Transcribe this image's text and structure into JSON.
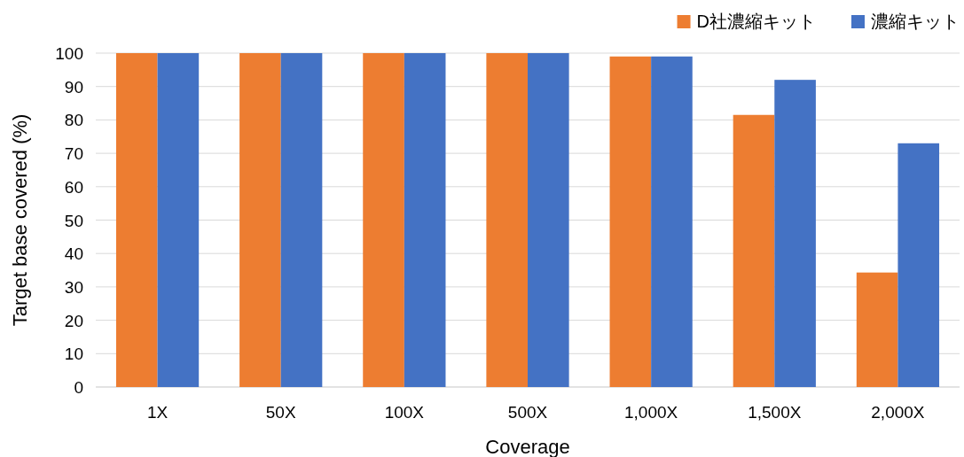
{
  "chart_data": {
    "type": "bar",
    "xlabel": "Coverage",
    "ylabel": "Target base covered (%)",
    "categories": [
      "1X",
      "50X",
      "100X",
      "500X",
      "1,000X",
      "1,500X",
      "2,000X"
    ],
    "series": [
      {
        "name": "D社濃縮キット",
        "color": "#ed7d31",
        "values": [
          100,
          100,
          100,
          100,
          99,
          81.5,
          34.3
        ]
      },
      {
        "name": "濃縮キット",
        "color": "#4472c4",
        "values": [
          100,
          100,
          100,
          100,
          99,
          92,
          73
        ]
      }
    ],
    "ylim": [
      0,
      100
    ],
    "yticks": [
      0,
      10,
      20,
      30,
      40,
      50,
      60,
      70,
      80,
      90,
      100
    ],
    "grid": "y",
    "legend": "top right"
  }
}
